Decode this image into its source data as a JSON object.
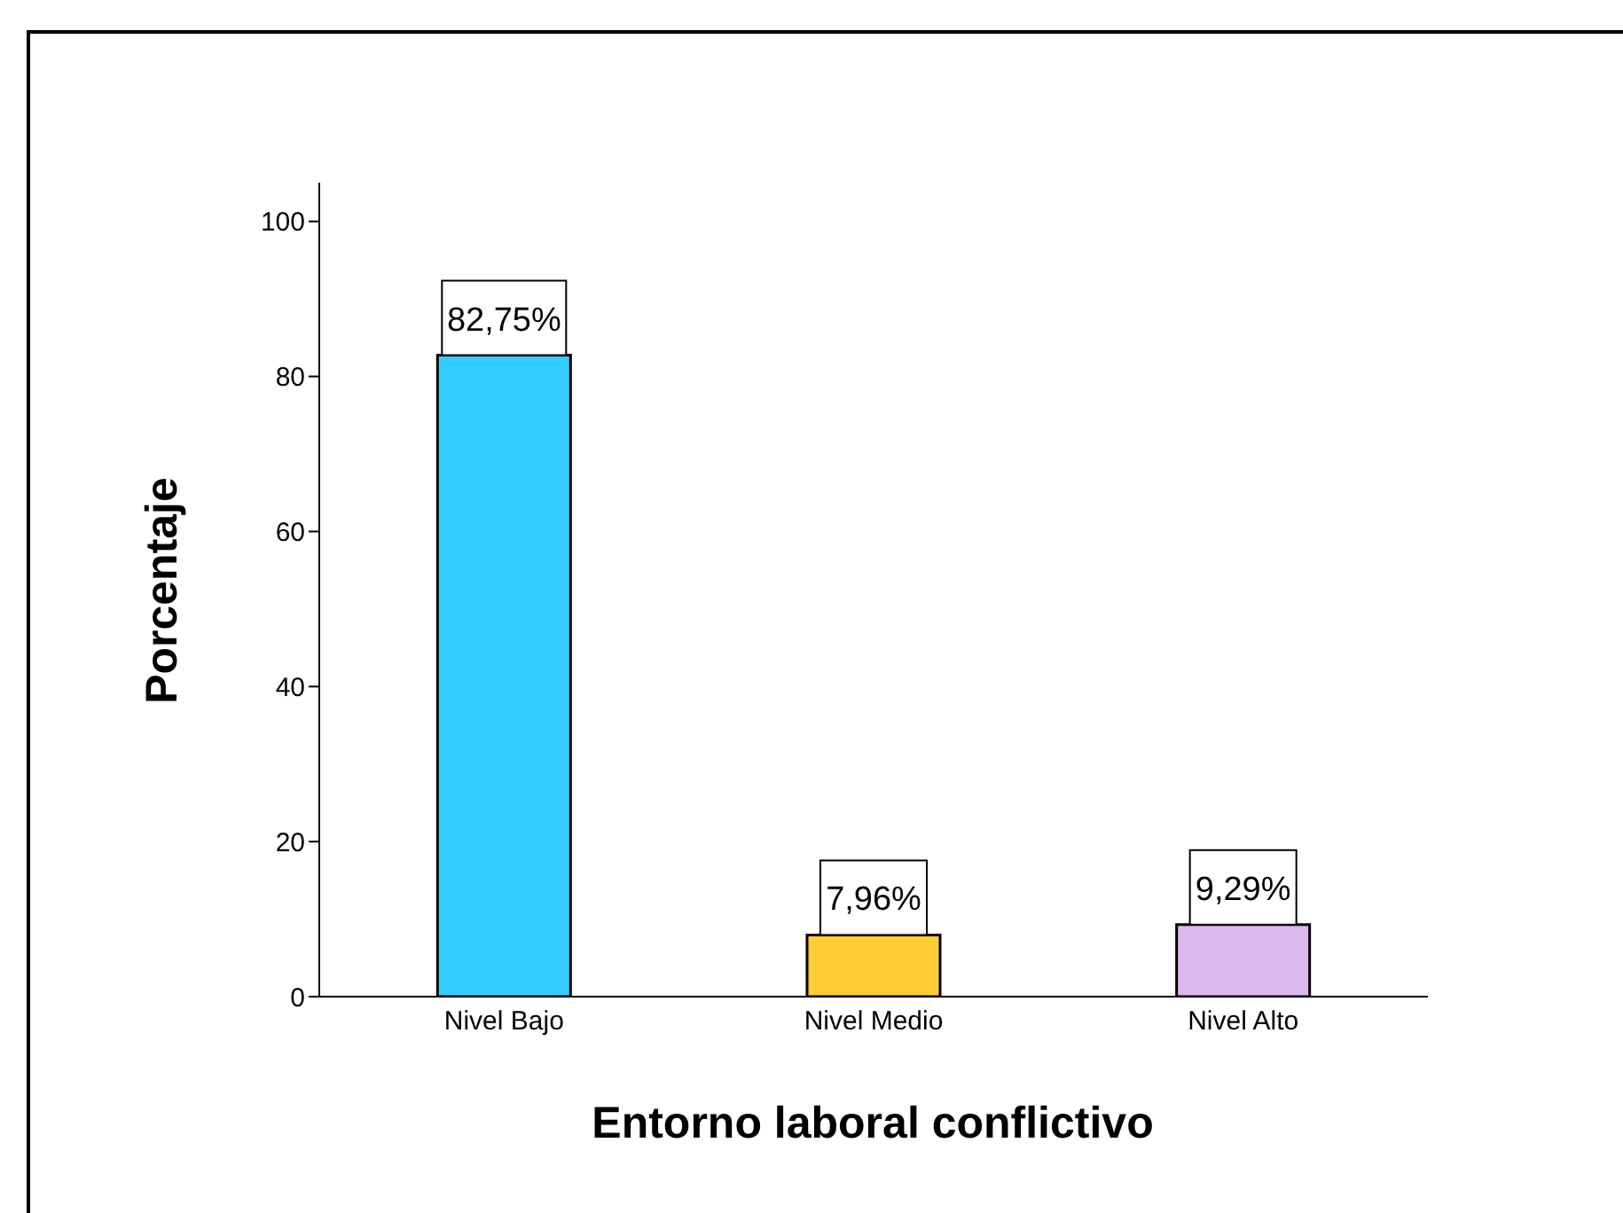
{
  "chart_data": {
    "type": "bar",
    "xlabel": "Entorno laboral conflictivo",
    "ylabel": "Porcentaje",
    "categories": [
      "Nivel Bajo",
      "Nivel Medio",
      "Nivel Alto"
    ],
    "values": [
      82.75,
      7.96,
      9.29
    ],
    "colors": [
      "#33ccff",
      "#ffcc33",
      "#ddb8ee"
    ],
    "value_labels": [
      "82,75%",
      "7,96%",
      "9,29%"
    ],
    "ylim": [
      0,
      105
    ],
    "yticks": [
      0,
      20,
      40,
      60,
      80,
      100
    ]
  }
}
